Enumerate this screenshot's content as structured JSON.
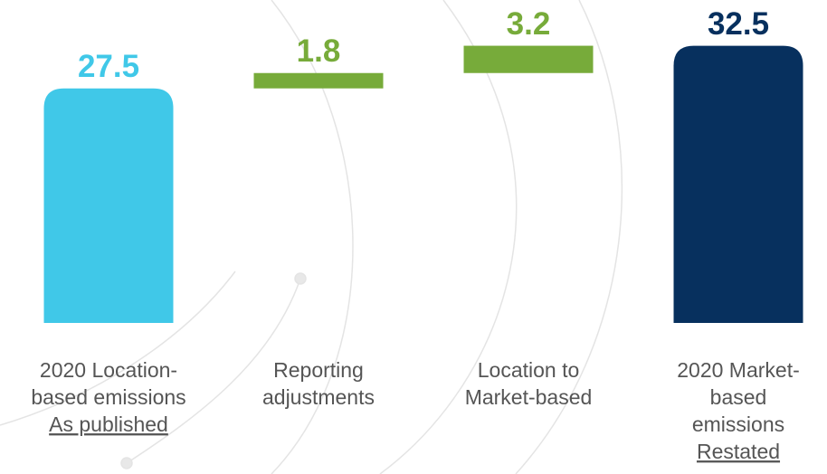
{
  "chart_data": {
    "type": "waterfall",
    "categories": [
      [
        "2020 Location-",
        "based emissions"
      ],
      [
        "Reporting",
        "adjustments"
      ],
      [
        "Location to",
        "Market-based"
      ],
      [
        "2020 Market-",
        "based",
        "emissions"
      ]
    ],
    "category_notes": [
      "As published",
      null,
      null,
      "Restated"
    ],
    "values": [
      27.5,
      1.8,
      3.2,
      32.5
    ],
    "measures": [
      "total",
      "relative",
      "relative",
      "total"
    ],
    "colors": [
      "#40c8e8",
      "#77ab3a",
      "#77ab3a",
      "#07305e"
    ],
    "ylim": [
      0,
      35
    ]
  }
}
